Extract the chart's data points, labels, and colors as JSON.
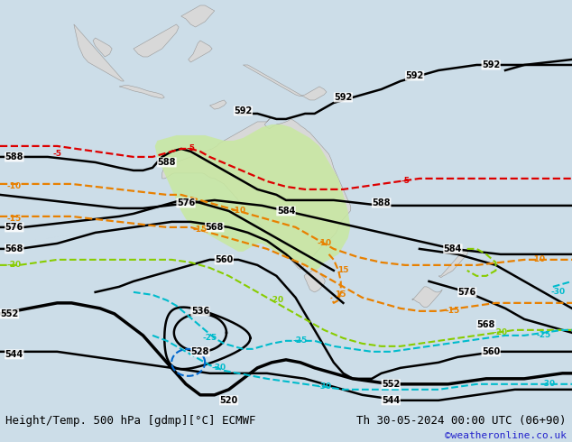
{
  "title_left": "Height/Temp. 500 hPa [gdmp][°C] ECMWF",
  "title_right": "Th 30-05-2024 00:00 UTC (06+90)",
  "credit": "©weatheronline.co.uk",
  "background_color": "#ccdde8",
  "land_color": "#d8d8d8",
  "australia_fill": "#c8e8a0",
  "sea_color": "#ccdde8",
  "fig_width": 6.34,
  "fig_height": 4.9,
  "dpi": 100,
  "bottom_bar_height": 0.082,
  "bottom_bar_color": "#e0e0e0",
  "title_fontsize": 9.0,
  "credit_fontsize": 8.0,
  "credit_color": "#2222cc",
  "contour_lw": 1.8,
  "contour_lw_bold": 2.5
}
